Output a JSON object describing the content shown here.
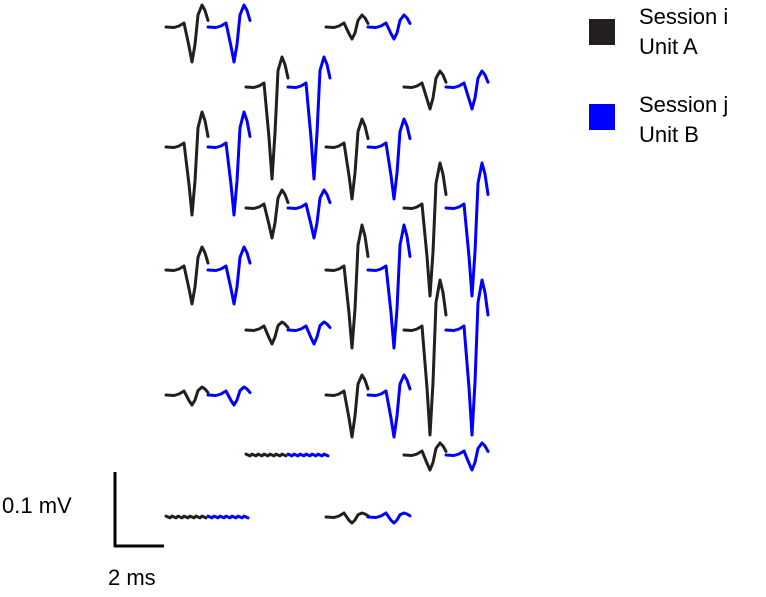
{
  "legend": [
    {
      "line1": "Session i",
      "line2": "Unit A",
      "color": "#231f20"
    },
    {
      "line1": "Session j",
      "line2": "Unit B",
      "color": "#0000ff"
    }
  ],
  "scale_bar": {
    "amplitude_label": "0.1 mV",
    "time_label": "2 ms"
  },
  "waveform_pairs": [
    {
      "row": 1,
      "column": 1,
      "peak": 22,
      "trough": 35,
      "flat": false
    },
    {
      "row": 1,
      "column": 3,
      "peak": 12,
      "trough": 12,
      "flat": false
    },
    {
      "row": 2,
      "column": 2,
      "peak": 30,
      "trough": 92,
      "flat": false
    },
    {
      "row": 2,
      "column": 4,
      "peak": 16,
      "trough": 22,
      "flat": false
    },
    {
      "row": 3,
      "column": 1,
      "peak": 35,
      "trough": 68,
      "flat": false
    },
    {
      "row": 3,
      "column": 3,
      "peak": 28,
      "trough": 52,
      "flat": false
    },
    {
      "row": 4,
      "column": 2,
      "peak": 18,
      "trough": 30,
      "flat": false
    },
    {
      "row": 4,
      "column": 4,
      "peak": 45,
      "trough": 88,
      "flat": false
    },
    {
      "row": 5,
      "column": 1,
      "peak": 23,
      "trough": 34,
      "flat": false
    },
    {
      "row": 5,
      "column": 3,
      "peak": 45,
      "trough": 78,
      "flat": false
    },
    {
      "row": 6,
      "column": 2,
      "peak": 8,
      "trough": 14,
      "flat": false
    },
    {
      "row": 6,
      "column": 4,
      "peak": 50,
      "trough": 105,
      "flat": false
    },
    {
      "row": 7,
      "column": 1,
      "peak": 8,
      "trough": 10,
      "flat": false
    },
    {
      "row": 7,
      "column": 3,
      "peak": 20,
      "trough": 42,
      "flat": false
    },
    {
      "row": 8,
      "column": 2,
      "peak": 0,
      "trough": 0,
      "flat": true
    },
    {
      "row": 8,
      "column": 4,
      "peak": 12,
      "trough": 15,
      "flat": false
    },
    {
      "row": 9,
      "column": 1,
      "peak": 0,
      "trough": 0,
      "flat": true
    },
    {
      "row": 9,
      "column": 3,
      "peak": 4,
      "trough": 6,
      "flat": false
    }
  ]
}
